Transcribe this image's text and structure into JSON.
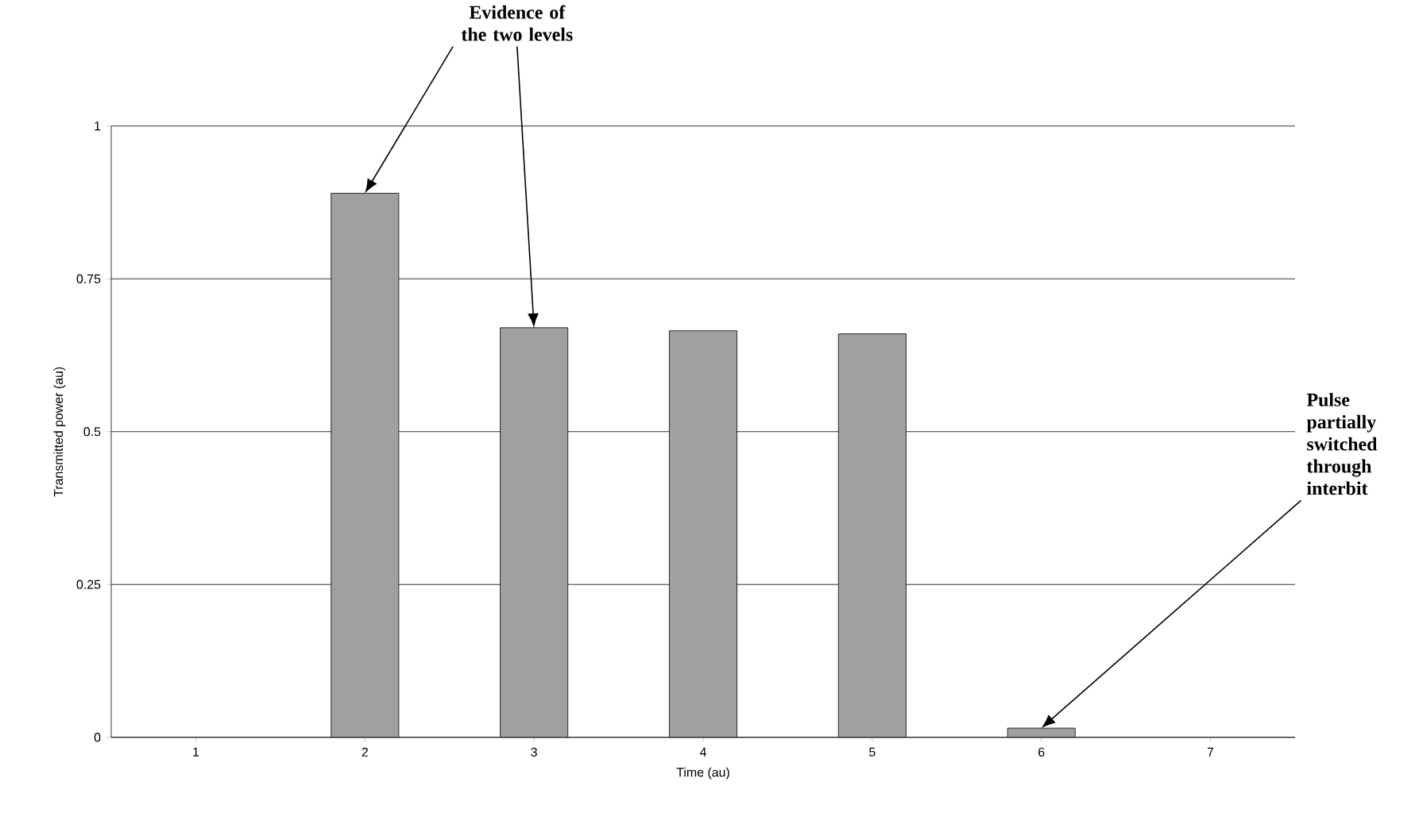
{
  "chart_data": {
    "type": "bar",
    "xlabel": "Time (au)",
    "ylabel": "Transmitted power (au)",
    "categories": [
      "1",
      "2",
      "3",
      "4",
      "5",
      "6",
      "7"
    ],
    "values": [
      0,
      0.89,
      0.67,
      0.665,
      0.66,
      0.015,
      0
    ],
    "color": "#a0a0a0",
    "ylim": [
      0,
      1
    ],
    "yticks": [
      0,
      0.25,
      0.5,
      0.75,
      1
    ],
    "grid": "y",
    "annotations": [
      {
        "text": "Evidence of the two levels",
        "x": "2",
        "y": 0.89
      },
      {
        "text": "Pulse partially switched through interbit",
        "x": "6",
        "y": 0.015
      }
    ]
  }
}
